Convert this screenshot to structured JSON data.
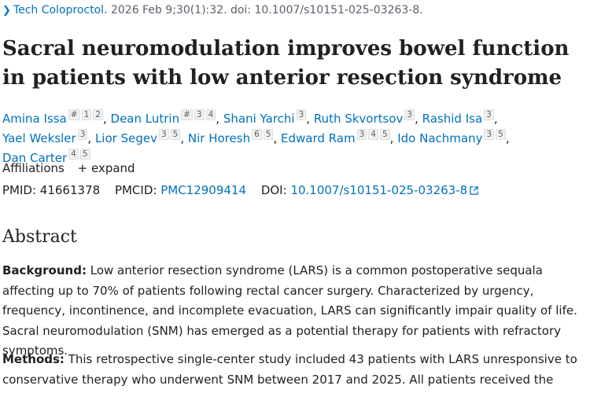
{
  "citation": {
    "journal": "Tech Coloproctol.",
    "details": " 2026 Feb 9;30(1):32. doi: 10.1007/s10151-025-03263-8."
  },
  "title": "Sacral neuromodulation improves bowel function in patients with low anterior resection syndrome",
  "authors": [
    {
      "name": "Amina Issa",
      "marks": [
        "#",
        "1",
        "2"
      ]
    },
    {
      "name": "Dean Lutrin",
      "marks": [
        "#",
        "3",
        "4"
      ]
    },
    {
      "name": "Shani Yarchi",
      "marks": [
        "3"
      ]
    },
    {
      "name": "Ruth Skvortsov",
      "marks": [
        "3"
      ]
    },
    {
      "name": "Rashid Isa",
      "marks": [
        "3"
      ]
    },
    {
      "name": "Yael Weksler",
      "marks": [
        "3"
      ]
    },
    {
      "name": "Lior Segev",
      "marks": [
        "3",
        "5"
      ]
    },
    {
      "name": "Nir Horesh",
      "marks": [
        "6",
        "5"
      ]
    },
    {
      "name": "Edward Ram",
      "marks": [
        "3",
        "4",
        "5"
      ]
    },
    {
      "name": "Ido Nachmany",
      "marks": [
        "3",
        "5"
      ]
    },
    {
      "name": "Dan Carter",
      "marks": [
        "4",
        "5"
      ]
    }
  ],
  "affiliations": {
    "label": "Affiliations",
    "expand": "expand",
    "expand_symbol": "+"
  },
  "identifiers": {
    "pmid_label": "PMID:",
    "pmid": "41661378",
    "pmcid_label": "PMCID:",
    "pmcid": "PMC12909414",
    "doi_label": "DOI:",
    "doi": "10.1007/s10151-025-03263-8"
  },
  "abstract": {
    "heading": "Abstract",
    "background_label": "Background:",
    "background_text": " Low anterior resection syndrome (LARS) is a common postoperative sequala affecting up to 70% of patients following rectal cancer surgery. Characterized by urgency, frequency, incontinence, and incomplete evacuation, LARS can significantly impair quality of life. Sacral neuromodulation (SNM) has emerged as a potential therapy for patients with refractory symptoms.",
    "methods_label": "Methods:",
    "methods_text": " This retrospective single-center study included 43 patients with LARS unresponsive to conservative therapy who underwent SNM between 2017 and 2025. All patients received the"
  },
  "colors": {
    "link": "#0071bc",
    "text": "#212121",
    "muted": "#5b616b"
  }
}
